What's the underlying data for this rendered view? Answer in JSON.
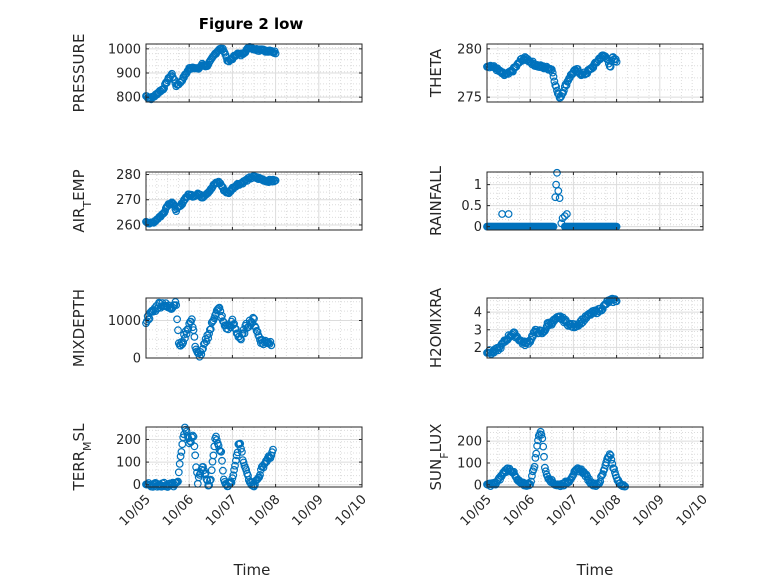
{
  "figure": {
    "title": "Figure 2 low",
    "xlabel": "Time",
    "xticks": [
      "10/05",
      "10/06",
      "10/07",
      "10/08",
      "10/09",
      "10/10"
    ],
    "colors": {
      "marker": "#0072bd",
      "grid": "#dcdcdc",
      "axes": "#262626"
    }
  },
  "chart_data": [
    {
      "type": "scatter",
      "ylabel": "PRESSURE",
      "ylim": [
        780,
        1020
      ],
      "yticks": [
        800,
        900,
        1000
      ],
      "grid": true,
      "x_range_days": [
        0,
        5
      ],
      "anchors": [
        [
          0,
          805
        ],
        [
          0.05,
          800
        ],
        [
          0.1,
          793
        ],
        [
          0.2,
          805
        ],
        [
          0.3,
          822
        ],
        [
          0.4,
          835
        ],
        [
          0.5,
          870
        ],
        [
          0.6,
          895
        ],
        [
          0.7,
          848
        ],
        [
          0.8,
          862
        ],
        [
          0.9,
          890
        ],
        [
          1.0,
          918
        ],
        [
          1.1,
          925
        ],
        [
          1.2,
          915
        ],
        [
          1.3,
          935
        ],
        [
          1.4,
          928
        ],
        [
          1.5,
          950
        ],
        [
          1.6,
          980
        ],
        [
          1.7,
          1000
        ],
        [
          1.8,
          995
        ],
        [
          1.9,
          945
        ],
        [
          2.0,
          960
        ],
        [
          2.1,
          980
        ],
        [
          2.2,
          975
        ],
        [
          2.3,
          990
        ],
        [
          2.4,
          1008
        ],
        [
          2.5,
          1000
        ],
        [
          2.6,
          995
        ],
        [
          2.7,
          1000
        ],
        [
          2.8,
          988
        ],
        [
          2.9,
          990
        ],
        [
          3.0,
          985
        ]
      ],
      "jitter": 5
    },
    {
      "type": "scatter",
      "ylabel": "THETA",
      "ylim": [
        274.5,
        280.5
      ],
      "yticks": [
        275,
        280
      ],
      "grid": true,
      "x_range_days": [
        0,
        5
      ],
      "anchors": [
        [
          0,
          278.3
        ],
        [
          0.1,
          278.2
        ],
        [
          0.2,
          278.0
        ],
        [
          0.3,
          277.6
        ],
        [
          0.4,
          277.3
        ],
        [
          0.5,
          277.4
        ],
        [
          0.6,
          277.8
        ],
        [
          0.7,
          278.3
        ],
        [
          0.8,
          278.9
        ],
        [
          0.9,
          279.0
        ],
        [
          1.0,
          278.7
        ],
        [
          1.1,
          278.4
        ],
        [
          1.2,
          278.2
        ],
        [
          1.3,
          278.1
        ],
        [
          1.4,
          278.0
        ],
        [
          1.5,
          277.9
        ],
        [
          1.55,
          277.0
        ],
        [
          1.6,
          276.0
        ],
        [
          1.65,
          275.2
        ],
        [
          1.7,
          275.0
        ],
        [
          1.8,
          276.0
        ],
        [
          1.9,
          277.0
        ],
        [
          2.0,
          277.6
        ],
        [
          2.1,
          277.8
        ],
        [
          2.2,
          277.3
        ],
        [
          2.3,
          277.5
        ],
        [
          2.4,
          277.9
        ],
        [
          2.5,
          278.4
        ],
        [
          2.6,
          279.0
        ],
        [
          2.7,
          279.3
        ],
        [
          2.8,
          279.0
        ],
        [
          2.85,
          277.8
        ],
        [
          2.9,
          279.1
        ],
        [
          3.0,
          278.7
        ]
      ],
      "jitter": 0.18
    },
    {
      "type": "scatter",
      "ylabel": "AIR_TEMP",
      "ylim": [
        258,
        281
      ],
      "yticks": [
        260,
        270,
        280
      ],
      "grid": true,
      "x_range_days": [
        0,
        5
      ],
      "anchors": [
        [
          0,
          261.5
        ],
        [
          0.1,
          260.5
        ],
        [
          0.2,
          261.5
        ],
        [
          0.3,
          263
        ],
        [
          0.4,
          264.5
        ],
        [
          0.5,
          268
        ],
        [
          0.6,
          269
        ],
        [
          0.7,
          266
        ],
        [
          0.8,
          267.5
        ],
        [
          0.9,
          270.5
        ],
        [
          1.0,
          272
        ],
        [
          1.1,
          271.5
        ],
        [
          1.2,
          272.5
        ],
        [
          1.3,
          271
        ],
        [
          1.4,
          272.5
        ],
        [
          1.5,
          274
        ],
        [
          1.6,
          276.5
        ],
        [
          1.7,
          277
        ],
        [
          1.8,
          274
        ],
        [
          1.9,
          272.5
        ],
        [
          2.0,
          274.5
        ],
        [
          2.1,
          276
        ],
        [
          2.2,
          276.5
        ],
        [
          2.3,
          277.5
        ],
        [
          2.4,
          278.5
        ],
        [
          2.5,
          279
        ],
        [
          2.6,
          278.5
        ],
        [
          2.7,
          278
        ],
        [
          2.8,
          277.5
        ],
        [
          3.0,
          277.5
        ]
      ],
      "jitter": 0.5
    },
    {
      "type": "scatter",
      "ylabel": "RAINFALL",
      "ylim": [
        -0.08,
        1.3
      ],
      "yticks": [
        0,
        0.5,
        1
      ],
      "ytick_labels": [
        "0",
        "0.5",
        "1"
      ],
      "grid": true,
      "x_range_days": [
        0,
        5
      ],
      "anchors": [
        [
          0,
          0
        ],
        [
          3.0,
          0
        ]
      ],
      "extra_points": [
        [
          0.35,
          0.3
        ],
        [
          0.5,
          0.3
        ],
        [
          1.58,
          0.7
        ],
        [
          1.6,
          1.0
        ],
        [
          1.62,
          1.28
        ],
        [
          1.65,
          0.85
        ],
        [
          1.68,
          0.68
        ],
        [
          1.72,
          0.08
        ],
        [
          1.8,
          0.25
        ],
        [
          1.85,
          0.3
        ],
        [
          1.75,
          0.2
        ]
      ],
      "gap": [
        1.55,
        1.8
      ],
      "jitter": 0
    },
    {
      "type": "scatter",
      "ylabel": "MIXDEPTH",
      "ylim": [
        0,
        1600
      ],
      "yticks": [
        0,
        1000
      ],
      "grid": true,
      "x_range_days": [
        0,
        5
      ],
      "anchors": [
        [
          0,
          1000
        ],
        [
          0.1,
          1150
        ],
        [
          0.2,
          1300
        ],
        [
          0.3,
          1420
        ],
        [
          0.4,
          1450
        ],
        [
          0.5,
          1350
        ],
        [
          0.6,
          1380
        ],
        [
          0.7,
          1500
        ],
        [
          0.75,
          450
        ],
        [
          0.8,
          300
        ],
        [
          0.9,
          600
        ],
        [
          1.0,
          900
        ],
        [
          1.05,
          1000
        ],
        [
          1.1,
          800
        ],
        [
          1.15,
          200
        ],
        [
          1.2,
          80
        ],
        [
          1.3,
          150
        ],
        [
          1.4,
          500
        ],
        [
          1.5,
          800
        ],
        [
          1.6,
          1200
        ],
        [
          1.7,
          1300
        ],
        [
          1.8,
          900
        ],
        [
          1.9,
          800
        ],
        [
          2.0,
          950
        ],
        [
          2.1,
          700
        ],
        [
          2.2,
          500
        ],
        [
          2.3,
          800
        ],
        [
          2.4,
          950
        ],
        [
          2.5,
          1000
        ],
        [
          2.6,
          600
        ],
        [
          2.7,
          400
        ],
        [
          2.8,
          450
        ],
        [
          2.9,
          400
        ]
      ],
      "jitter": 90
    },
    {
      "type": "scatter",
      "ylabel": "H2OMIXRA",
      "ylim": [
        1.4,
        4.8
      ],
      "yticks": [
        2,
        3,
        4
      ],
      "grid": true,
      "x_range_days": [
        0,
        5
      ],
      "anchors": [
        [
          0,
          1.8
        ],
        [
          0.1,
          1.7
        ],
        [
          0.2,
          1.8
        ],
        [
          0.3,
          2.0
        ],
        [
          0.4,
          2.3
        ],
        [
          0.5,
          2.6
        ],
        [
          0.6,
          2.8
        ],
        [
          0.7,
          2.6
        ],
        [
          0.8,
          2.3
        ],
        [
          0.9,
          2.2
        ],
        [
          1.0,
          2.4
        ],
        [
          1.1,
          2.9
        ],
        [
          1.2,
          2.9
        ],
        [
          1.3,
          2.8
        ],
        [
          1.4,
          3.3
        ],
        [
          1.5,
          3.4
        ],
        [
          1.6,
          3.6
        ],
        [
          1.7,
          3.7
        ],
        [
          1.8,
          3.5
        ],
        [
          1.9,
          3.3
        ],
        [
          2.0,
          3.2
        ],
        [
          2.1,
          3.3
        ],
        [
          2.2,
          3.5
        ],
        [
          2.3,
          3.7
        ],
        [
          2.4,
          3.9
        ],
        [
          2.5,
          4.0
        ],
        [
          2.6,
          4.1
        ],
        [
          2.7,
          4.3
        ],
        [
          2.8,
          4.6
        ],
        [
          3.0,
          4.7
        ]
      ],
      "jitter": 0.12
    },
    {
      "type": "scatter",
      "ylabel": "TERR_MSL",
      "ylim": [
        -10,
        255
      ],
      "yticks": [
        0,
        100,
        200
      ],
      "grid": true,
      "x_range_days": [
        0,
        5
      ],
      "anchors": [
        [
          0,
          0
        ],
        [
          0.7,
          0
        ],
        [
          0.75,
          30
        ],
        [
          0.8,
          120
        ],
        [
          0.85,
          200
        ],
        [
          0.9,
          245
        ],
        [
          0.95,
          230
        ],
        [
          1.0,
          180
        ],
        [
          1.05,
          200
        ],
        [
          1.1,
          220
        ],
        [
          1.15,
          100
        ],
        [
          1.2,
          10
        ],
        [
          1.3,
          80
        ],
        [
          1.35,
          60
        ],
        [
          1.4,
          30
        ],
        [
          1.45,
          0
        ],
        [
          1.5,
          20
        ],
        [
          1.55,
          120
        ],
        [
          1.6,
          210
        ],
        [
          1.65,
          200
        ],
        [
          1.7,
          160
        ],
        [
          1.75,
          130
        ],
        [
          1.8,
          30
        ],
        [
          1.85,
          5
        ],
        [
          1.9,
          0
        ],
        [
          2.0,
          20
        ],
        [
          2.1,
          120
        ],
        [
          2.15,
          190
        ],
        [
          2.2,
          160
        ],
        [
          2.25,
          100
        ],
        [
          2.3,
          70
        ],
        [
          2.4,
          20
        ],
        [
          2.45,
          5
        ],
        [
          2.5,
          0
        ],
        [
          2.6,
          30
        ],
        [
          2.7,
          80
        ],
        [
          2.8,
          110
        ],
        [
          2.9,
          130
        ],
        [
          2.95,
          150
        ]
      ],
      "jitter": 10
    },
    {
      "type": "scatter",
      "ylabel": "SUN_FLUX",
      "ylim": [
        -10,
        265
      ],
      "yticks": [
        0,
        100,
        200
      ],
      "grid": true,
      "x_range_days": [
        0,
        5
      ],
      "anchors": [
        [
          0,
          0
        ],
        [
          0.2,
          5
        ],
        [
          0.3,
          30
        ],
        [
          0.4,
          60
        ],
        [
          0.5,
          75
        ],
        [
          0.6,
          60
        ],
        [
          0.7,
          20
        ],
        [
          0.8,
          5
        ],
        [
          0.9,
          0
        ],
        [
          1.0,
          5
        ],
        [
          1.1,
          90
        ],
        [
          1.15,
          160
        ],
        [
          1.2,
          230
        ],
        [
          1.25,
          245
        ],
        [
          1.3,
          180
        ],
        [
          1.35,
          60
        ],
        [
          1.4,
          40
        ],
        [
          1.5,
          15
        ],
        [
          1.6,
          0
        ],
        [
          1.7,
          0
        ],
        [
          1.8,
          5
        ],
        [
          1.9,
          20
        ],
        [
          2.0,
          50
        ],
        [
          2.1,
          70
        ],
        [
          2.2,
          65
        ],
        [
          2.3,
          40
        ],
        [
          2.4,
          10
        ],
        [
          2.5,
          0
        ],
        [
          2.6,
          10
        ],
        [
          2.7,
          60
        ],
        [
          2.75,
          100
        ],
        [
          2.8,
          130
        ],
        [
          2.85,
          140
        ],
        [
          2.9,
          100
        ],
        [
          2.95,
          60
        ],
        [
          3.0,
          30
        ],
        [
          3.05,
          10
        ],
        [
          3.1,
          0
        ],
        [
          3.2,
          0
        ]
      ],
      "jitter": 8
    }
  ]
}
